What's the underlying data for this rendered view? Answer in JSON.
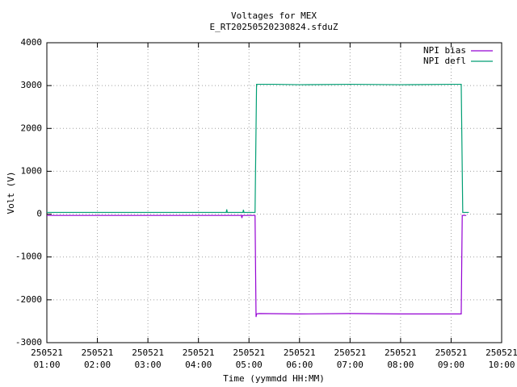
{
  "chart_data": {
    "type": "line",
    "title": "Voltages for MEX",
    "subtitle": "E_RT20250520230824.sfduZ",
    "x_label": "Time (yymmdd HH:MM)",
    "y_label": "Volt (V)",
    "xlim": [
      1,
      10
    ],
    "xticks": [
      {
        "value": 1,
        "label": "250521\n01:00"
      },
      {
        "value": 2,
        "label": "250521\n02:00"
      },
      {
        "value": 3,
        "label": "250521\n03:00"
      },
      {
        "value": 4,
        "label": "250521\n04:00"
      },
      {
        "value": 5,
        "label": "250521\n05:00"
      },
      {
        "value": 6,
        "label": "250521\n06:00"
      },
      {
        "value": 7,
        "label": "250521\n07:00"
      },
      {
        "value": 8,
        "label": "250521\n08:00"
      },
      {
        "value": 9,
        "label": "250521\n09:00"
      },
      {
        "value": 10,
        "label": "250521\n10:00"
      }
    ],
    "ylim": [
      -3000,
      4000
    ],
    "yticks": [
      -3000,
      -2000,
      -1000,
      0,
      1000,
      2000,
      3000,
      4000
    ],
    "grid": true,
    "legend": "top right",
    "series": [
      {
        "name": "NPI bias",
        "color": "#9400d3",
        "x": [
          1.0,
          4.85,
          4.86,
          4.87,
          5.12,
          5.14,
          5.15,
          5.2,
          6,
          7,
          8,
          9,
          9.2,
          9.22,
          9.3
        ],
        "values": [
          -30,
          -30,
          -90,
          -30,
          -30,
          -2400,
          -2330,
          -2320,
          -2330,
          -2320,
          -2330,
          -2330,
          -2330,
          -30,
          -30
        ]
      },
      {
        "name": "NPI defl",
        "color": "#009e73",
        "x": [
          1.0,
          4.55,
          4.56,
          4.57,
          4.88,
          4.89,
          4.9,
          5.12,
          5.15,
          5.5,
          6,
          7,
          8,
          9,
          9.2,
          9.23,
          9.35
        ],
        "values": [
          40,
          40,
          110,
          40,
          40,
          100,
          40,
          40,
          3030,
          3030,
          3020,
          3030,
          3020,
          3030,
          3030,
          40,
          40
        ]
      }
    ]
  }
}
